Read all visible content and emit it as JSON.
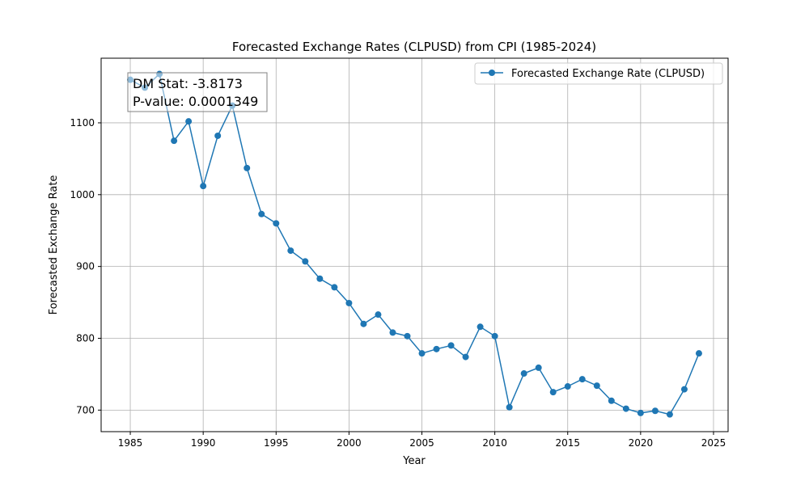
{
  "chart_data": {
    "type": "line",
    "title": "Forecasted Exchange Rates (CLPUSD) from CPI (1985-2024)",
    "xlabel": "Year",
    "ylabel": "Forecasted Exchange Rate",
    "xlim": [
      1983,
      2026
    ],
    "ylim": [
      670,
      1190
    ],
    "x_ticks": [
      1985,
      1990,
      1995,
      2000,
      2005,
      2010,
      2015,
      2020,
      2025
    ],
    "y_ticks": [
      700,
      800,
      900,
      1000,
      1100
    ],
    "grid": true,
    "legend_position": "top-right",
    "color": "#1f77b4",
    "series": [
      {
        "name": "Forecasted Exchange Rate (CLPUSD)",
        "x": [
          1985,
          1986,
          1987,
          1988,
          1989,
          1990,
          1991,
          1992,
          1993,
          1994,
          1995,
          1996,
          1997,
          1998,
          1999,
          2000,
          2001,
          2002,
          2003,
          2004,
          2005,
          2006,
          2007,
          2008,
          2009,
          2010,
          2011,
          2012,
          2013,
          2014,
          2015,
          2016,
          2017,
          2018,
          2019,
          2020,
          2021,
          2022,
          2023,
          2024
        ],
        "values": [
          1160,
          1149,
          1168,
          1075,
          1102,
          1012,
          1082,
          1124,
          1037,
          973,
          960,
          922,
          907,
          883,
          871,
          849,
          820,
          833,
          808,
          803,
          779,
          785,
          790,
          774,
          816,
          803,
          704,
          751,
          759,
          725,
          733,
          743,
          734,
          713,
          702,
          696,
          699,
          694,
          729,
          779
        ]
      }
    ],
    "annotation": {
      "line1": "DM Stat: -3.8173",
      "line2": "P-value: 0.0001349"
    }
  }
}
